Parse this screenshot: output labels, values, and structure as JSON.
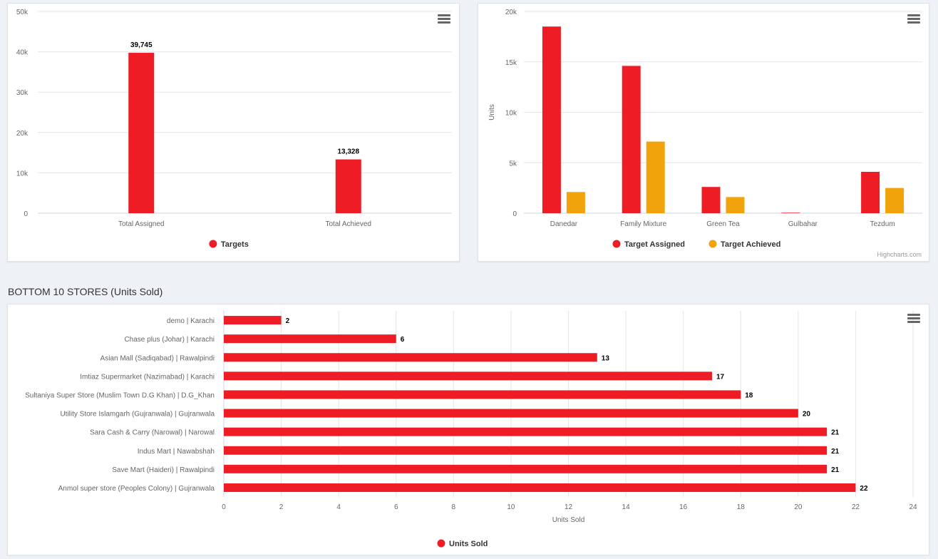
{
  "colors": {
    "red": "#ee1c25",
    "orange": "#f0a30a",
    "grid": "#e6e6e6",
    "axis": "#ccd6eb",
    "text": "#666666"
  },
  "section_title": "BOTTOM 10 STORES (Units Sold)",
  "credit": "Highcharts.com",
  "menu_icon": "hamburger-menu-icon",
  "chart_data": [
    {
      "type": "bar",
      "categories": [
        "Total Assigned",
        "Total Achieved"
      ],
      "series": [
        {
          "name": "Targets",
          "values": [
            39745,
            13328
          ],
          "color": "#ee1c25"
        }
      ],
      "data_labels": [
        "39,745",
        "13,328"
      ],
      "ylim": [
        0,
        50000
      ],
      "yticks": [
        0,
        10000,
        20000,
        30000,
        40000,
        50000
      ],
      "ytick_labels": [
        "0",
        "10k",
        "20k",
        "30k",
        "40k",
        "50k"
      ],
      "legend": "bottom-center",
      "grid": true
    },
    {
      "type": "bar",
      "categories": [
        "Danedar",
        "Family Mixture",
        "Green Tea",
        "Gulbahar",
        "Tezdum"
      ],
      "series": [
        {
          "name": "Target Assigned",
          "values": [
            18500,
            14600,
            2600,
            50,
            4100
          ],
          "color": "#ee1c25"
        },
        {
          "name": "Target Achieved",
          "values": [
            2100,
            7100,
            1600,
            0,
            2500
          ],
          "color": "#f0a30a"
        }
      ],
      "ylabel": "Units",
      "ylim": [
        0,
        20000
      ],
      "yticks": [
        0,
        5000,
        10000,
        15000,
        20000
      ],
      "ytick_labels": [
        "0",
        "5k",
        "10k",
        "15k",
        "20k"
      ],
      "legend": "bottom-center",
      "grid": true
    },
    {
      "type": "bar",
      "orientation": "horizontal",
      "categories": [
        "demo | Karachi",
        "Chase plus (Johar) | Karachi",
        "Asian Mall (Sadiqabad) | Rawalpindi",
        "Imtiaz Supermarket (Nazimabad) | Karachi",
        "Sultaniya Super Store (Muslim Town D.G Khan) | D.G_Khan",
        "Utility Store Islamgarh (Gujranwala) | Gujranwala",
        "Sara Cash & Carry (Narowal) | Narowal",
        "Indus Mart | Nawabshah",
        "Save Mart (Haideri) | Rawalpindi",
        "Anmol super store (Peoples Colony) | Gujranwala"
      ],
      "series": [
        {
          "name": "Units Sold",
          "values": [
            2,
            6,
            13,
            17,
            18,
            20,
            21,
            21,
            21,
            22
          ],
          "color": "#ee1c25"
        }
      ],
      "xlabel": "Units Sold",
      "xlim": [
        0,
        24
      ],
      "xticks": [
        0,
        2,
        4,
        6,
        8,
        10,
        12,
        14,
        16,
        18,
        20,
        22,
        24
      ],
      "legend": "bottom-center",
      "grid": true
    }
  ]
}
